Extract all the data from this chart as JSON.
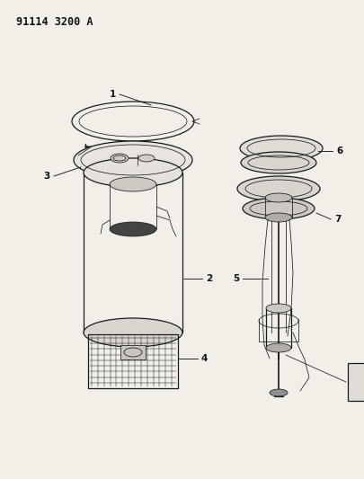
{
  "title": "91114 3200 A",
  "bg_color": "#f2efe9",
  "line_color": "#1a1a1a",
  "label_color": "#111111",
  "lw_main": 0.9,
  "lw_thin": 0.55,
  "label_fontsize": 7.5
}
